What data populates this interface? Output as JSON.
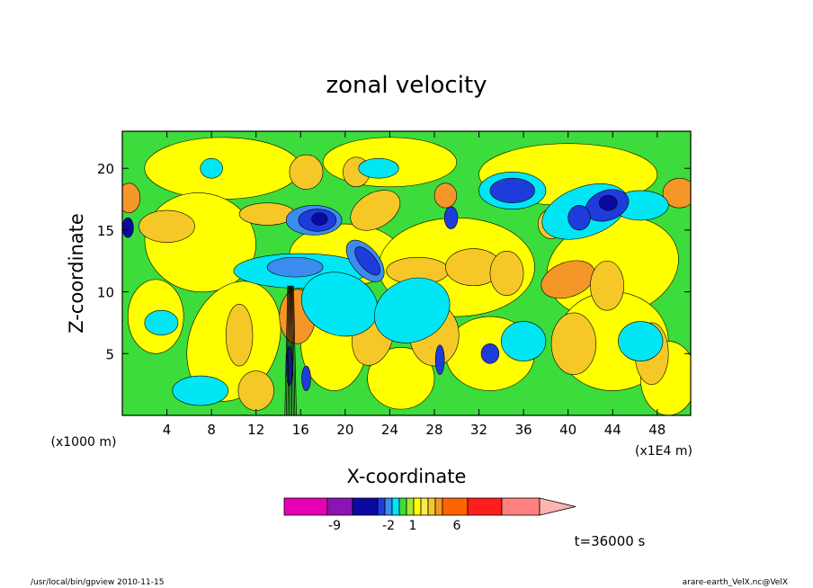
{
  "chart_data": {
    "type": "heatmap",
    "title": "zonal velocity",
    "xlabel": "X-coordinate",
    "ylabel": "Z-coordinate",
    "x_unit_label": "(x1E4 m)",
    "y_unit_label": "(x1000 m)",
    "x_ticks": [
      "4",
      "8",
      "12",
      "16",
      "20",
      "24",
      "28",
      "32",
      "36",
      "40",
      "44",
      "48"
    ],
    "y_ticks": [
      "5",
      "10",
      "15",
      "20"
    ],
    "xlim": [
      0,
      51
    ],
    "ylim": [
      0,
      23
    ],
    "colorbar": {
      "colors": [
        "#e600b4",
        "#8c14b4",
        "#0a0aa0",
        "#1e3cdc",
        "#3c8cf0",
        "#00e6f5",
        "#3cdc3c",
        "#a8e632",
        "#ffff00",
        "#ffe650",
        "#f5c828",
        "#f59628",
        "#ff6400",
        "#ff1e1e",
        "#ff8080",
        "#ffb4b4"
      ],
      "tick_labels": [
        "-9",
        "-2",
        "1",
        "6"
      ]
    },
    "time_label": "t=36000 s"
  },
  "footer": {
    "left": "/usr/local/bin/gpview  2010-11-15",
    "right": "arare-earth_VelX.nc@VelX"
  }
}
